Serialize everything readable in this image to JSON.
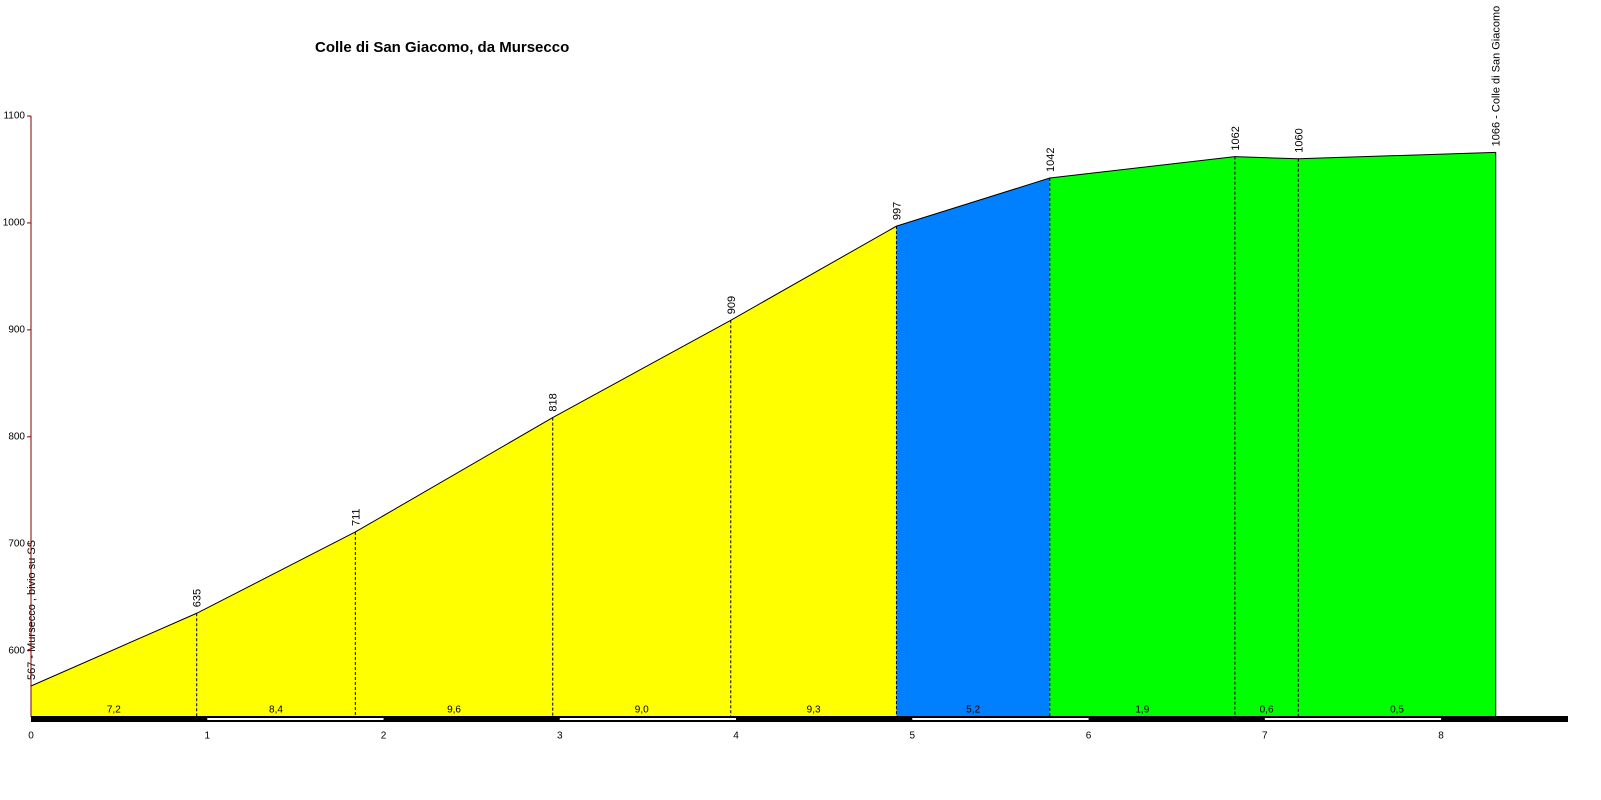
{
  "chart_data": {
    "type": "area",
    "title": "Colle di San Giacomo, da Mursecco",
    "x": [
      0,
      0.94,
      1.84,
      2.96,
      3.97,
      4.91,
      5.78,
      6.83,
      7.19,
      8.31
    ],
    "values": [
      567,
      635,
      711,
      818,
      909,
      997,
      1042,
      1062,
      1060,
      1066
    ],
    "value_labels": [
      "567 - Mursecco , bivio su SS",
      "635",
      "711",
      "818",
      "909",
      "997",
      "1042",
      "1062",
      "1060",
      "1066 - Colle di San Giacomo"
    ],
    "segment_labels": [
      "7,2",
      "8,4",
      "9,6",
      "9,0",
      "9,3",
      "5,2",
      "1,9",
      "0,6",
      "0,5"
    ],
    "segment_colors": [
      "#ffff00",
      "#ffff00",
      "#ffff00",
      "#ffff00",
      "#ffff00",
      "#0080ff",
      "#00ff00",
      "#00ff00",
      "#00ff00"
    ],
    "xlim": [
      0,
      8.72
    ],
    "xticks": [
      0,
      1,
      2,
      3,
      4,
      5,
      6,
      7,
      8
    ],
    "ylim": [
      538,
      1100
    ],
    "yticks": [
      600,
      700,
      800,
      900,
      1000,
      1100
    ]
  }
}
